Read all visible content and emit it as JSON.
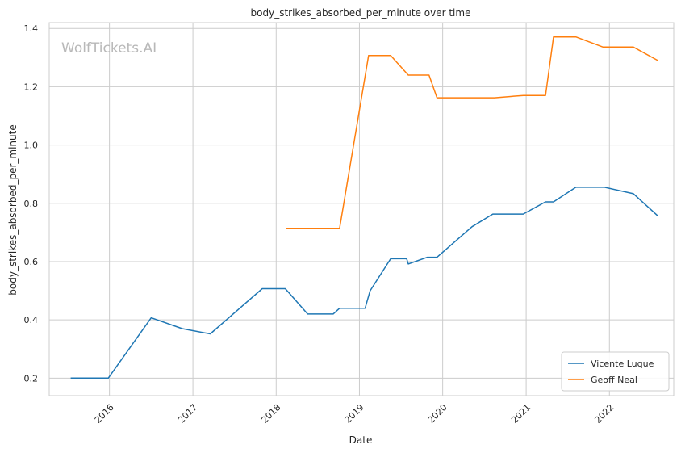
{
  "chart_data": {
    "type": "line",
    "title": "body_strikes_absorbed_per_minute over time",
    "xlabel": "Date",
    "ylabel": "body_strikes_absorbed_per_minute",
    "watermark": "WolfTickets.AI",
    "xlim": [
      "2015-04-12",
      "2022-10-10"
    ],
    "ylim": [
      0.14,
      1.42
    ],
    "x_ticks": [
      "2016-01-01",
      "2017-01-01",
      "2018-01-01",
      "2019-01-01",
      "2020-01-01",
      "2021-01-01",
      "2022-01-01"
    ],
    "x_tick_labels": [
      "2016",
      "2017",
      "2018",
      "2019",
      "2020",
      "2021",
      "2022"
    ],
    "y_ticks": [
      0.2,
      0.4,
      0.6,
      0.8,
      1.0,
      1.2,
      1.4
    ],
    "y_tick_labels": [
      "0.2",
      "0.4",
      "0.6",
      "0.8",
      "1.0",
      "1.2",
      "1.4"
    ],
    "grid": true,
    "legend_position": "bottom-right",
    "series": [
      {
        "name": "Vicente Luque",
        "color": "#1f77b4",
        "points": [
          [
            "2015-07-15",
            0.2
          ],
          [
            "2015-12-27",
            0.2
          ],
          [
            "2016-07-02",
            0.407
          ],
          [
            "2016-11-15",
            0.37
          ],
          [
            "2017-03-18",
            0.352
          ],
          [
            "2017-11-01",
            0.507
          ],
          [
            "2018-02-10",
            0.507
          ],
          [
            "2018-05-19",
            0.42
          ],
          [
            "2018-09-08",
            0.42
          ],
          [
            "2018-10-06",
            0.44
          ],
          [
            "2019-01-26",
            0.44
          ],
          [
            "2019-02-17",
            0.5
          ],
          [
            "2019-05-18",
            0.61
          ],
          [
            "2019-07-27",
            0.61
          ],
          [
            "2019-08-03",
            0.592
          ],
          [
            "2019-10-26",
            0.615
          ],
          [
            "2019-12-07",
            0.615
          ],
          [
            "2020-05-09",
            0.72
          ],
          [
            "2020-08-08",
            0.763
          ],
          [
            "2020-12-19",
            0.763
          ],
          [
            "2021-03-27",
            0.805
          ],
          [
            "2021-05-01",
            0.805
          ],
          [
            "2021-08-07",
            0.855
          ],
          [
            "2021-12-11",
            0.855
          ],
          [
            "2022-04-16",
            0.833
          ],
          [
            "2022-08-01",
            0.757
          ]
        ]
      },
      {
        "name": "Geoff Neal",
        "color": "#ff7f0e",
        "points": [
          [
            "2018-02-15",
            0.714
          ],
          [
            "2018-10-06",
            0.714
          ],
          [
            "2019-02-10",
            1.307
          ],
          [
            "2019-05-18",
            1.307
          ],
          [
            "2019-08-03",
            1.24
          ],
          [
            "2019-11-02",
            1.24
          ],
          [
            "2019-12-07",
            1.162
          ],
          [
            "2020-08-15",
            1.162
          ],
          [
            "2020-12-20",
            1.17
          ],
          [
            "2021-03-27",
            1.17
          ],
          [
            "2021-05-01",
            1.371
          ],
          [
            "2021-08-07",
            1.371
          ],
          [
            "2021-12-04",
            1.336
          ],
          [
            "2022-04-16",
            1.336
          ],
          [
            "2022-08-01",
            1.29
          ]
        ]
      }
    ]
  }
}
